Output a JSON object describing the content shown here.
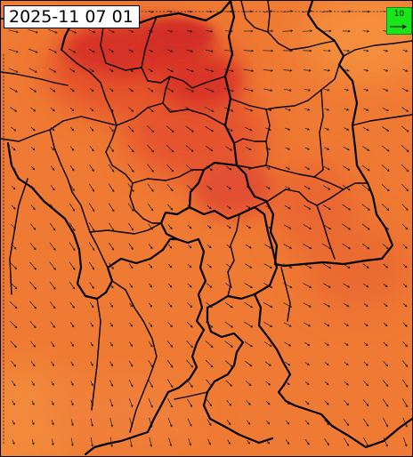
{
  "map": {
    "timestamp": "2025-11 07 01",
    "wind_scale_label": "10",
    "colors": {
      "base": "#ef7a33",
      "warm_high": "#d42a28",
      "warm_mid": "#e1452b",
      "cool": "#f48e3c",
      "border": "#000000",
      "scale_box": "#19e619"
    },
    "layers": [
      "temperature-field",
      "administrative-borders",
      "wind-vectors"
    ]
  }
}
